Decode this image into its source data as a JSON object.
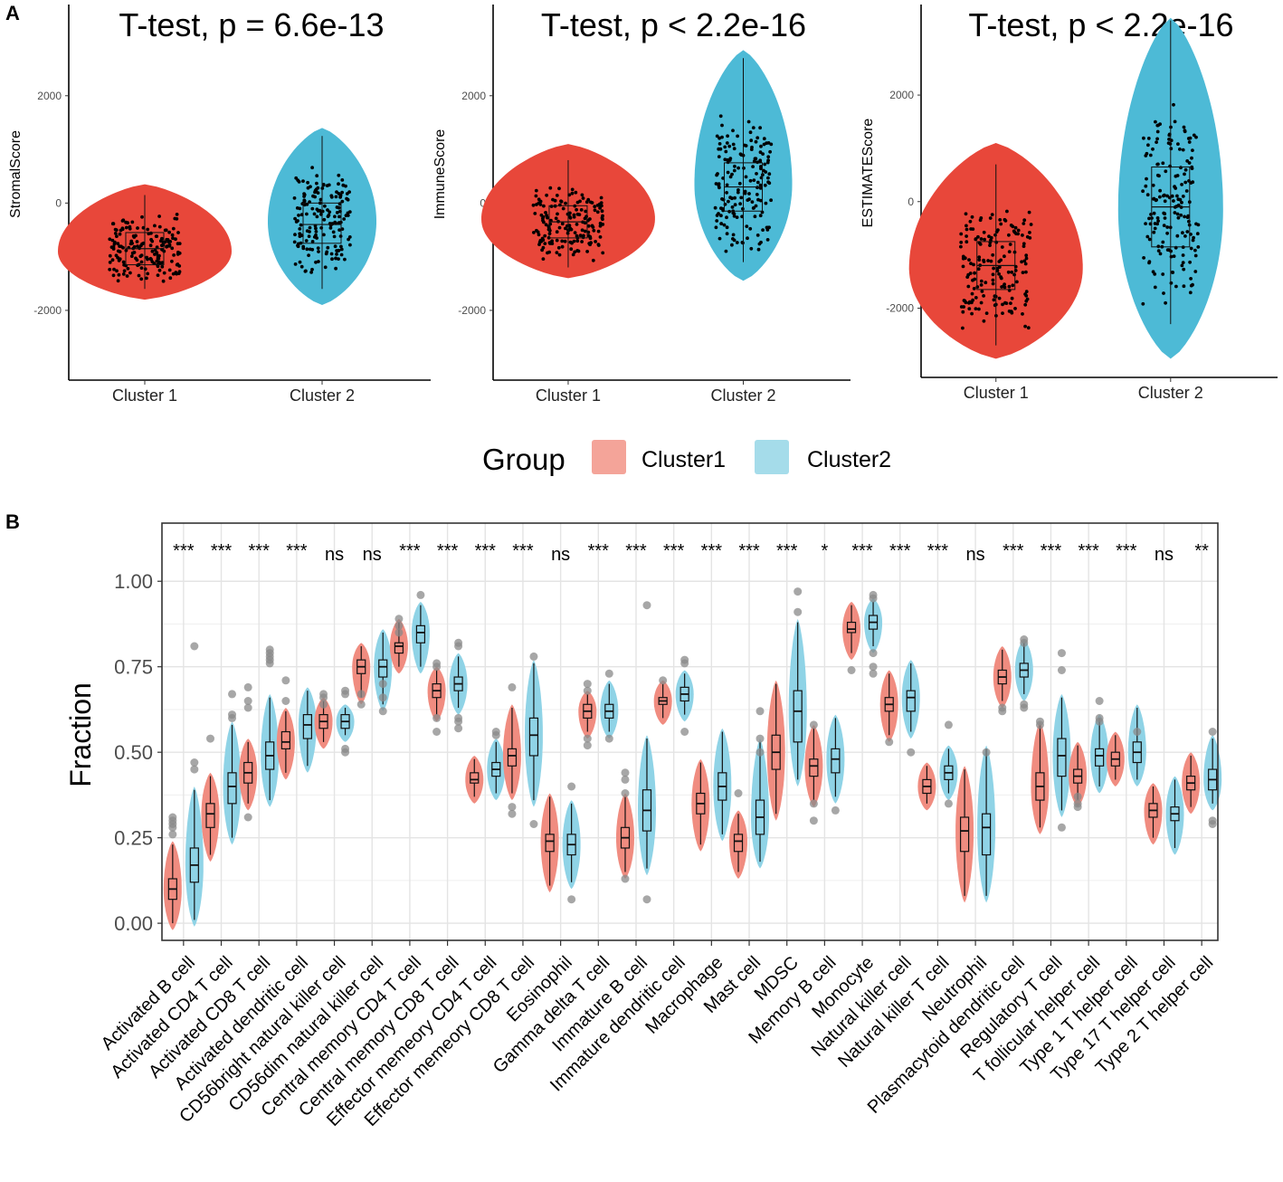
{
  "panel_labels": [
    "A",
    "B"
  ],
  "colors": {
    "cluster1_violin": "#E8473A",
    "cluster2_violin": "#4DBAD6",
    "cluster1_legend": "#F4A499",
    "cluster2_legend": "#A5DCEA",
    "cluster1_b": "#F08C80",
    "cluster2_b": "#8FD3E6",
    "points": "#000000",
    "outliers": "#8A8A8A",
    "grid": "#E4E4E4"
  },
  "legend": {
    "title": "Group",
    "items": [
      "Cluster1",
      "Cluster2"
    ]
  },
  "chart_data": [
    {
      "type": "violin",
      "title": "T-test, p = 6.6e-13",
      "ylabel": "StromalScore",
      "xlabel": "",
      "categories": [
        "Cluster 1",
        "Cluster 2"
      ],
      "yticks": [
        -2000,
        0,
        2000
      ],
      "ylim": [
        -3300,
        3700
      ],
      "series": [
        {
          "name": "Cluster 1",
          "min": -1800,
          "max": 350,
          "mode": -900,
          "q1": -1150,
          "median": -850,
          "q3": -550,
          "whisker_low": -1600,
          "whisker_high": 150
        },
        {
          "name": "Cluster 2",
          "min": -1900,
          "max": 1400,
          "mode": -350,
          "q1": -750,
          "median": -400,
          "q3": 0,
          "whisker_low": -1600,
          "whisker_high": 1250
        }
      ]
    },
    {
      "type": "violin",
      "title": "T-test, p < 2.2e-16",
      "ylabel": "ImmuneScore",
      "xlabel": "",
      "categories": [
        "Cluster 1",
        "Cluster 2"
      ],
      "yticks": [
        -2000,
        0,
        2000
      ],
      "ylim": [
        -3300,
        3700
      ],
      "series": [
        {
          "name": "Cluster 1",
          "min": -1400,
          "max": 1100,
          "mode": -300,
          "q1": -650,
          "median": -350,
          "q3": -50,
          "whisker_low": -1200,
          "whisker_high": 800
        },
        {
          "name": "Cluster 2",
          "min": -1450,
          "max": 2850,
          "mode": 350,
          "q1": -150,
          "median": 300,
          "q3": 750,
          "whisker_low": -1100,
          "whisker_high": 2700
        }
      ]
    },
    {
      "type": "violin",
      "title": "T-test, p < 2.2e-16",
      "ylabel": "ESTIMATEScore",
      "xlabel": "",
      "categories": [
        "Cluster 1",
        "Cluster 2"
      ],
      "yticks": [
        -2000,
        0,
        2000
      ],
      "ylim": [
        -3300,
        3700
      ],
      "series": [
        {
          "name": "Cluster 1",
          "min": -2950,
          "max": 1100,
          "mode": -1250,
          "q1": -1650,
          "median": -1200,
          "q3": -750,
          "whisker_low": -2700,
          "whisker_high": 700
        },
        {
          "name": "Cluster 2",
          "min": -2950,
          "max": 3450,
          "mode": -150,
          "q1": -850,
          "median": -100,
          "q3": 650,
          "whisker_low": -2300,
          "whisker_high": 3400
        }
      ]
    },
    {
      "type": "violin",
      "title": "",
      "ylabel": "Fraction",
      "xlabel": "",
      "ylim": [
        -0.05,
        1.17
      ],
      "yticks": [
        0.0,
        0.25,
        0.5,
        0.75,
        1.0
      ],
      "ytick_labels": [
        "0.00",
        "0.25",
        "0.50",
        "0.75",
        "1.00"
      ],
      "categories": [
        "Activated B cell",
        "Activated CD4 T cell",
        "Activated CD8 T cell",
        "Activated dendritic cell",
        "CD56bright natural killer cell",
        "CD56dim natural killer cell",
        "Central memory CD4 T cell",
        "Central memory CD8 T cell",
        "Effector memeory CD4 T cell",
        "Effector memeory CD8 T cell",
        "Eosinophil",
        "Gamma delta T cell",
        "Immature  B cell",
        "Immature dendritic cell",
        "Macrophage",
        "Mast cell",
        "MDSC",
        "Memory B cell",
        "Monocyte",
        "Natural killer cell",
        "Natural killer T cell",
        "Neutrophil",
        "Plasmacytoid dendritic cell",
        "Regulatory T cell",
        "T follicular helper cell",
        "Type 1 T helper cell",
        "Type 17 T helper cell",
        "Type 2 T helper cell"
      ],
      "significance": [
        "***",
        "***",
        "***",
        "***",
        "ns",
        "ns",
        "***",
        "***",
        "***",
        "***",
        "ns",
        "***",
        "***",
        "***",
        "***",
        "***",
        "***",
        "*",
        "***",
        "***",
        "***",
        "ns",
        "***",
        "***",
        "***",
        "***",
        "ns",
        "**"
      ],
      "series": [
        {
          "name": "Cluster1",
          "median": [
            0.1,
            0.32,
            0.44,
            0.53,
            0.59,
            0.75,
            0.81,
            0.68,
            0.42,
            0.49,
            0.24,
            0.62,
            0.25,
            0.65,
            0.35,
            0.24,
            0.5,
            0.46,
            0.86,
            0.64,
            0.4,
            0.27,
            0.72,
            0.4,
            0.43,
            0.48,
            0.33,
            0.41
          ],
          "q1": [
            0.07,
            0.28,
            0.41,
            0.51,
            0.57,
            0.73,
            0.79,
            0.66,
            0.41,
            0.46,
            0.21,
            0.6,
            0.22,
            0.64,
            0.32,
            0.21,
            0.45,
            0.43,
            0.85,
            0.62,
            0.38,
            0.21,
            0.7,
            0.36,
            0.41,
            0.46,
            0.31,
            0.39
          ],
          "q3": [
            0.13,
            0.35,
            0.47,
            0.56,
            0.61,
            0.77,
            0.82,
            0.7,
            0.44,
            0.51,
            0.26,
            0.64,
            0.28,
            0.66,
            0.38,
            0.26,
            0.55,
            0.48,
            0.88,
            0.66,
            0.42,
            0.31,
            0.74,
            0.44,
            0.45,
            0.5,
            0.35,
            0.43
          ],
          "min": [
            0.0,
            0.2,
            0.35,
            0.44,
            0.53,
            0.66,
            0.75,
            0.61,
            0.37,
            0.38,
            0.11,
            0.56,
            0.15,
            0.6,
            0.23,
            0.15,
            0.32,
            0.36,
            0.79,
            0.55,
            0.35,
            0.08,
            0.65,
            0.28,
            0.36,
            0.42,
            0.25,
            0.34
          ],
          "max": [
            0.23,
            0.43,
            0.53,
            0.62,
            0.65,
            0.81,
            0.88,
            0.74,
            0.48,
            0.63,
            0.37,
            0.67,
            0.37,
            0.7,
            0.47,
            0.32,
            0.7,
            0.57,
            0.93,
            0.73,
            0.46,
            0.45,
            0.8,
            0.58,
            0.52,
            0.55,
            0.4,
            0.49
          ],
          "outliers": [
            [
              0.26,
              0.28,
              0.29,
              0.3,
              0.31
            ],
            [
              0.54
            ],
            [
              0.31,
              0.63,
              0.65,
              0.69
            ],
            [
              0.65,
              0.71
            ],
            [
              0.64,
              0.66,
              0.67
            ],
            [
              0.64,
              0.67
            ],
            [
              0.85,
              0.87,
              0.89
            ],
            [
              0.56,
              0.6,
              0.75,
              0.76
            ],
            [],
            [
              0.32,
              0.34,
              0.69
            ],
            [],
            [
              0.52,
              0.54,
              0.68,
              0.7
            ],
            [
              0.13,
              0.38,
              0.42,
              0.44
            ],
            [
              0.71
            ],
            [],
            [
              0.38
            ],
            [],
            [
              0.3,
              0.35,
              0.58
            ],
            [
              0.74
            ],
            [
              0.53
            ],
            [],
            [],
            [
              0.62,
              0.63
            ],
            [
              0.58,
              0.59
            ],
            [
              0.34,
              0.35,
              0.37
            ],
            [],
            [],
            []
          ]
        },
        {
          "name": "Cluster2",
          "median": [
            0.17,
            0.4,
            0.49,
            0.58,
            0.59,
            0.75,
            0.85,
            0.7,
            0.45,
            0.55,
            0.23,
            0.62,
            0.33,
            0.67,
            0.4,
            0.31,
            0.62,
            0.48,
            0.88,
            0.66,
            0.44,
            0.28,
            0.74,
            0.49,
            0.49,
            0.5,
            0.32,
            0.42
          ],
          "q1": [
            0.12,
            0.35,
            0.45,
            0.54,
            0.57,
            0.72,
            0.82,
            0.68,
            0.43,
            0.49,
            0.2,
            0.6,
            0.27,
            0.65,
            0.36,
            0.26,
            0.53,
            0.44,
            0.86,
            0.62,
            0.42,
            0.2,
            0.72,
            0.43,
            0.46,
            0.47,
            0.3,
            0.39
          ],
          "q3": [
            0.22,
            0.44,
            0.53,
            0.61,
            0.61,
            0.77,
            0.87,
            0.72,
            0.47,
            0.6,
            0.26,
            0.64,
            0.39,
            0.69,
            0.44,
            0.36,
            0.68,
            0.51,
            0.9,
            0.68,
            0.46,
            0.32,
            0.76,
            0.54,
            0.51,
            0.53,
            0.34,
            0.45
          ],
          "min": [
            0.01,
            0.25,
            0.36,
            0.46,
            0.55,
            0.64,
            0.75,
            0.63,
            0.38,
            0.36,
            0.12,
            0.56,
            0.16,
            0.61,
            0.26,
            0.18,
            0.42,
            0.37,
            0.81,
            0.56,
            0.38,
            0.08,
            0.67,
            0.33,
            0.4,
            0.42,
            0.22,
            0.35
          ],
          "max": [
            0.39,
            0.58,
            0.66,
            0.68,
            0.63,
            0.85,
            0.93,
            0.78,
            0.53,
            0.76,
            0.35,
            0.7,
            0.54,
            0.73,
            0.56,
            0.53,
            0.88,
            0.6,
            0.94,
            0.76,
            0.51,
            0.51,
            0.82,
            0.66,
            0.6,
            0.63,
            0.42,
            0.54
          ],
          "outliers": [
            [
              0.45,
              0.47,
              0.81
            ],
            [
              0.6,
              0.61,
              0.67
            ],
            [
              0.76,
              0.77,
              0.78,
              0.79,
              0.8
            ],
            [],
            [
              0.5,
              0.51,
              0.67,
              0.68
            ],
            [
              0.62,
              0.66,
              0.7
            ],
            [
              0.96
            ],
            [
              0.57,
              0.59,
              0.6,
              0.81,
              0.82
            ],
            [
              0.55,
              0.56
            ],
            [
              0.29,
              0.78
            ],
            [
              0.07,
              0.4
            ],
            [
              0.54,
              0.73
            ],
            [
              0.07,
              0.93
            ],
            [
              0.56,
              0.76,
              0.77
            ],
            [],
            [
              0.5,
              0.54,
              0.62
            ],
            [
              0.91,
              0.97
            ],
            [
              0.33
            ],
            [
              0.73,
              0.75,
              0.79,
              0.95,
              0.96
            ],
            [
              0.5
            ],
            [
              0.35,
              0.58
            ],
            [
              0.5
            ],
            [
              0.63,
              0.64,
              0.82,
              0.83
            ],
            [
              0.28,
              0.74,
              0.79
            ],
            [
              0.59,
              0.6,
              0.65
            ],
            [
              0.56
            ],
            [],
            [
              0.29,
              0.3,
              0.56
            ]
          ]
        }
      ]
    }
  ]
}
